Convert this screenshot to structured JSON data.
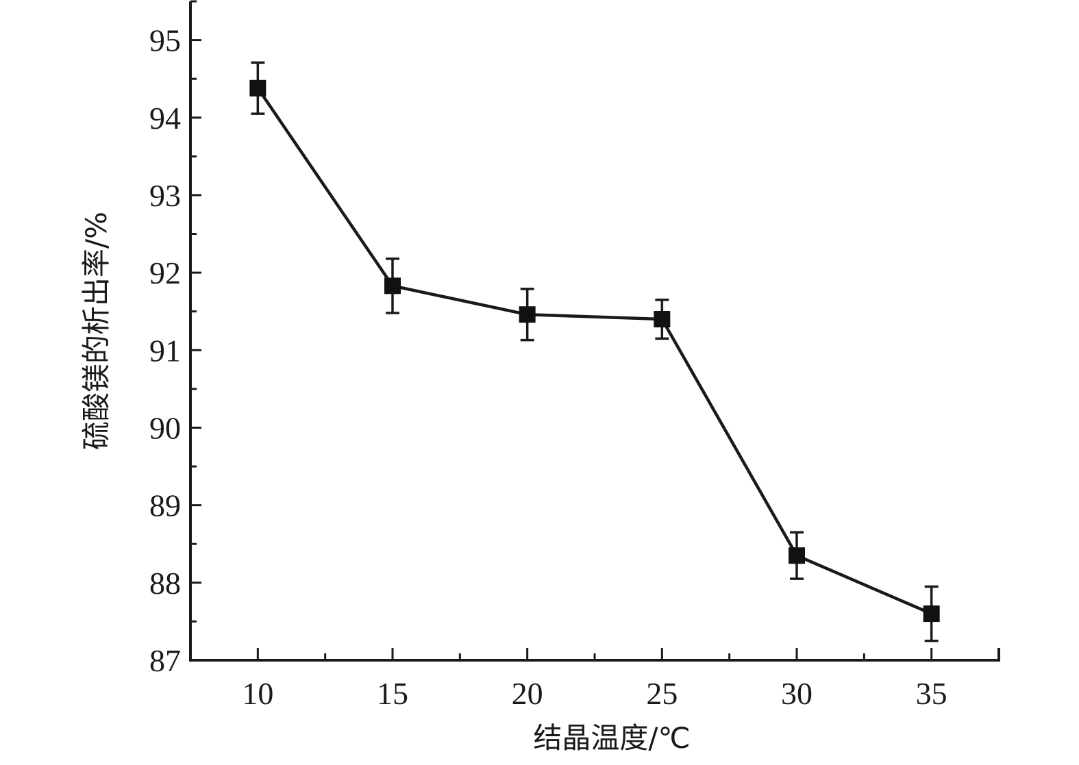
{
  "chart_data": {
    "type": "line",
    "xlabel": "结晶温度/℃",
    "ylabel": "硫酸镁的析出率/%",
    "xlim": [
      7.5,
      37.5
    ],
    "ylim": [
      87,
      95.5
    ],
    "x_ticks": [
      10,
      15,
      20,
      25,
      30,
      35
    ],
    "y_ticks": [
      87,
      88,
      89,
      90,
      91,
      92,
      93,
      94,
      95
    ],
    "grid": false,
    "marker": "square",
    "series": [
      {
        "x": [
          10,
          15,
          20,
          25,
          30,
          35
        ],
        "values": [
          94.38,
          91.83,
          91.46,
          91.4,
          88.35,
          87.6
        ],
        "error": [
          0.33,
          0.35,
          0.33,
          0.25,
          0.3,
          0.35
        ]
      }
    ]
  }
}
